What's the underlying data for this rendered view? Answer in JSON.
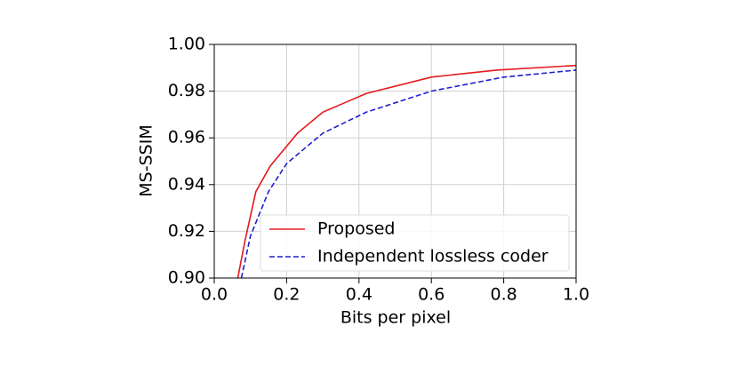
{
  "chart_data": {
    "type": "line",
    "x_label": "Bits per pixel",
    "y_label": "MS-SSIM",
    "series": [
      {
        "name": "Proposed",
        "color": "#e31a1c",
        "dash": "solid",
        "x": [
          0.065,
          0.085,
          0.115,
          0.155,
          0.23,
          0.3,
          0.42,
          0.6,
          0.78,
          1.0
        ],
        "values": [
          0.9,
          0.916,
          0.937,
          0.948,
          0.962,
          0.971,
          0.979,
          0.986,
          0.989,
          0.991
        ]
      },
      {
        "name": "Independent lossless coder",
        "color": "#1f1fd1",
        "dash": "dashed",
        "x": [
          0.075,
          0.1,
          0.15,
          0.2,
          0.3,
          0.42,
          0.6,
          0.8,
          1.0
        ],
        "values": [
          0.9,
          0.918,
          0.937,
          0.949,
          0.962,
          0.971,
          0.98,
          0.986,
          0.989
        ]
      }
    ],
    "xlim": [
      0,
      1
    ],
    "ylim": [
      0.9,
      1
    ],
    "xticks": [
      {
        "value": 0,
        "label": "0.0"
      },
      0.2,
      0.4,
      0.6,
      0.8,
      {
        "value": 1,
        "label": "1.0"
      }
    ],
    "yticks": [
      {
        "value": 0.9,
        "label": "0.90"
      },
      {
        "value": 0.92,
        "label": "0.92"
      },
      {
        "value": 0.94,
        "label": "0.94"
      },
      {
        "value": 0.96,
        "label": "0.96"
      },
      {
        "value": 0.98,
        "label": "0.98"
      },
      {
        "value": 1,
        "label": "1.00"
      }
    ],
    "grid": true,
    "legend": "lower right"
  }
}
